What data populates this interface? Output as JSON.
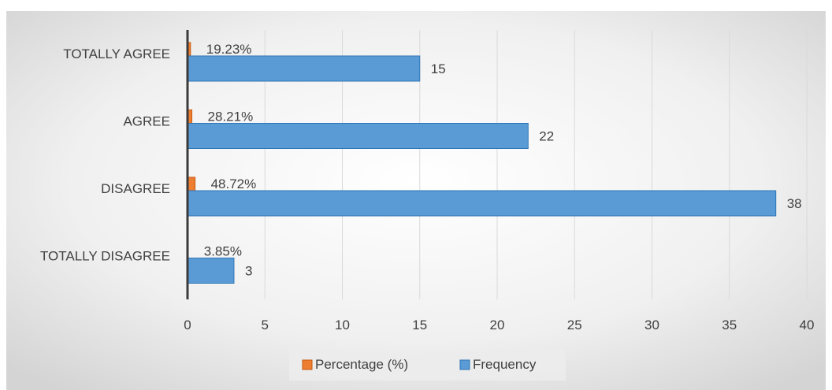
{
  "chart_data": {
    "type": "bar",
    "orientation": "horizontal",
    "title": "",
    "xlabel": "",
    "ylabel": "",
    "categories": [
      "TOTALLY AGREE",
      "AGREE",
      "DISAGREE",
      "TOTALLY DISAGREE"
    ],
    "series": [
      {
        "name": "Percentage (%)",
        "values": [
          0.1923,
          0.2821,
          0.4872,
          0.0385
        ],
        "labels": [
          "19.23%",
          "28.21%",
          "48.72%",
          "3.85%"
        ],
        "color": "#ED7D31"
      },
      {
        "name": "Frequency",
        "values": [
          15,
          22,
          38,
          3
        ],
        "labels": [
          "15",
          "22",
          "38",
          "3"
        ],
        "color": "#5B9BD5"
      }
    ],
    "xlim": [
      0,
      40
    ],
    "ticks": [
      "0",
      "5",
      "10",
      "15",
      "20",
      "25",
      "30",
      "35",
      "40"
    ],
    "grid": true,
    "legend_position": "bottom",
    "background": "radial-gradient-gray"
  }
}
